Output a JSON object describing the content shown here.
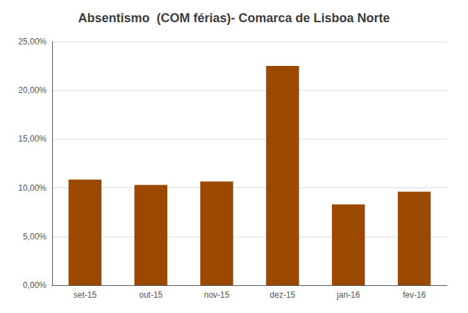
{
  "chart_data": {
    "type": "bar",
    "title": "Absentismo  (COM férias)- Comarca de Lisboa Norte",
    "categories": [
      "set-15",
      "out-15",
      "nov-15",
      "dez-15",
      "jan-16",
      "fev-16"
    ],
    "values": [
      0.1085,
      0.103,
      0.1065,
      0.225,
      0.083,
      0.096
    ],
    "color": "#9B4800",
    "ylim": [
      0,
      0.25
    ],
    "yticks": [
      {
        "value": 0.0,
        "label": "0,00%"
      },
      {
        "value": 0.05,
        "label": "5,00%"
      },
      {
        "value": 0.1,
        "label": "10,00%"
      },
      {
        "value": 0.15,
        "label": "15,00%"
      },
      {
        "value": 0.2,
        "label": "20,00%"
      },
      {
        "value": 0.25,
        "label": "25,00%"
      }
    ],
    "grid": true
  }
}
